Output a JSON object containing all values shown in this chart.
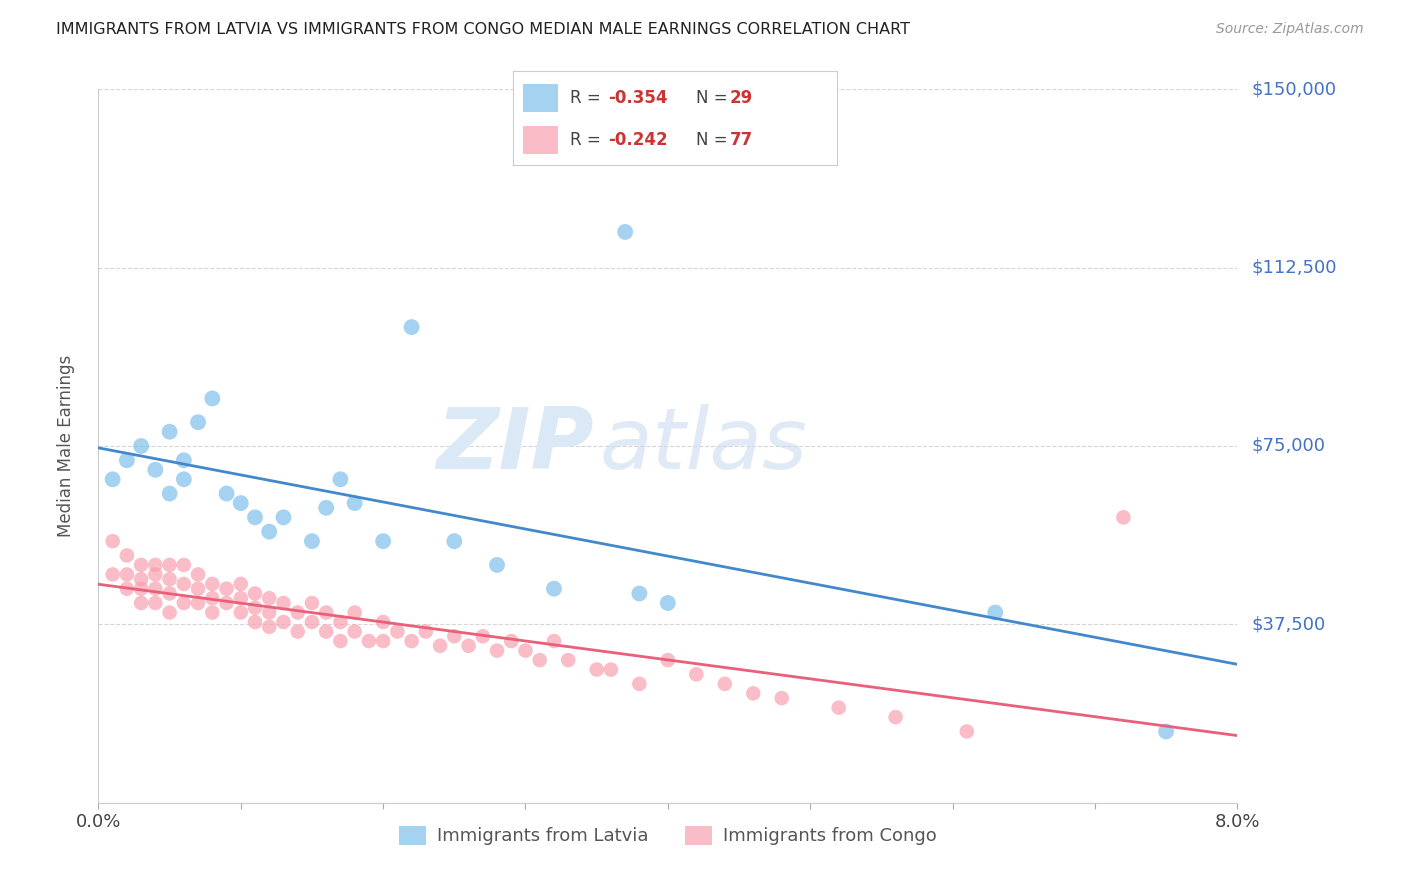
{
  "title": "IMMIGRANTS FROM LATVIA VS IMMIGRANTS FROM CONGO MEDIAN MALE EARNINGS CORRELATION CHART",
  "source": "Source: ZipAtlas.com",
  "ylabel": "Median Male Earnings",
  "xlim": [
    0.0,
    0.08
  ],
  "ylim": [
    0,
    150000
  ],
  "yticks": [
    0,
    37500,
    75000,
    112500,
    150000
  ],
  "ytick_labels": [
    "",
    "$37,500",
    "$75,000",
    "$112,500",
    "$150,000"
  ],
  "background_color": "#ffffff",
  "grid_color": "#cccccc",
  "legend_R_latvia": "-0.354",
  "legend_N_latvia": "29",
  "legend_R_congo": "-0.242",
  "legend_N_congo": "77",
  "latvia_color": "#7fbfec",
  "congo_color": "#f8a0b0",
  "latvia_line_color": "#4488cc",
  "congo_line_color": "#e8607a",
  "watermark_zip": "ZIP",
  "watermark_atlas": "atlas",
  "latvia_x": [
    0.001,
    0.002,
    0.003,
    0.004,
    0.005,
    0.005,
    0.006,
    0.006,
    0.007,
    0.008,
    0.009,
    0.01,
    0.011,
    0.012,
    0.013,
    0.015,
    0.016,
    0.017,
    0.018,
    0.02,
    0.022,
    0.025,
    0.028,
    0.032,
    0.037,
    0.038,
    0.04,
    0.063,
    0.075
  ],
  "latvia_y": [
    68000,
    72000,
    75000,
    70000,
    78000,
    65000,
    72000,
    68000,
    80000,
    85000,
    65000,
    63000,
    60000,
    57000,
    60000,
    55000,
    62000,
    68000,
    63000,
    55000,
    100000,
    55000,
    50000,
    45000,
    120000,
    44000,
    42000,
    40000,
    15000
  ],
  "congo_x": [
    0.001,
    0.001,
    0.002,
    0.002,
    0.002,
    0.003,
    0.003,
    0.003,
    0.003,
    0.004,
    0.004,
    0.004,
    0.004,
    0.005,
    0.005,
    0.005,
    0.005,
    0.006,
    0.006,
    0.006,
    0.007,
    0.007,
    0.007,
    0.008,
    0.008,
    0.008,
    0.009,
    0.009,
    0.01,
    0.01,
    0.01,
    0.011,
    0.011,
    0.011,
    0.012,
    0.012,
    0.012,
    0.013,
    0.013,
    0.014,
    0.014,
    0.015,
    0.015,
    0.016,
    0.016,
    0.017,
    0.017,
    0.018,
    0.018,
    0.019,
    0.02,
    0.02,
    0.021,
    0.022,
    0.023,
    0.024,
    0.025,
    0.026,
    0.027,
    0.028,
    0.029,
    0.03,
    0.031,
    0.032,
    0.033,
    0.035,
    0.036,
    0.038,
    0.04,
    0.042,
    0.044,
    0.046,
    0.048,
    0.052,
    0.056,
    0.061,
    0.072
  ],
  "congo_y": [
    55000,
    48000,
    52000,
    48000,
    45000,
    50000,
    47000,
    45000,
    42000,
    50000,
    48000,
    45000,
    42000,
    50000,
    47000,
    44000,
    40000,
    50000,
    46000,
    42000,
    48000,
    45000,
    42000,
    46000,
    43000,
    40000,
    45000,
    42000,
    46000,
    43000,
    40000,
    44000,
    41000,
    38000,
    43000,
    40000,
    37000,
    42000,
    38000,
    40000,
    36000,
    42000,
    38000,
    40000,
    36000,
    38000,
    34000,
    40000,
    36000,
    34000,
    38000,
    34000,
    36000,
    34000,
    36000,
    33000,
    35000,
    33000,
    35000,
    32000,
    34000,
    32000,
    30000,
    34000,
    30000,
    28000,
    28000,
    25000,
    30000,
    27000,
    25000,
    23000,
    22000,
    20000,
    18000,
    15000,
    60000
  ]
}
